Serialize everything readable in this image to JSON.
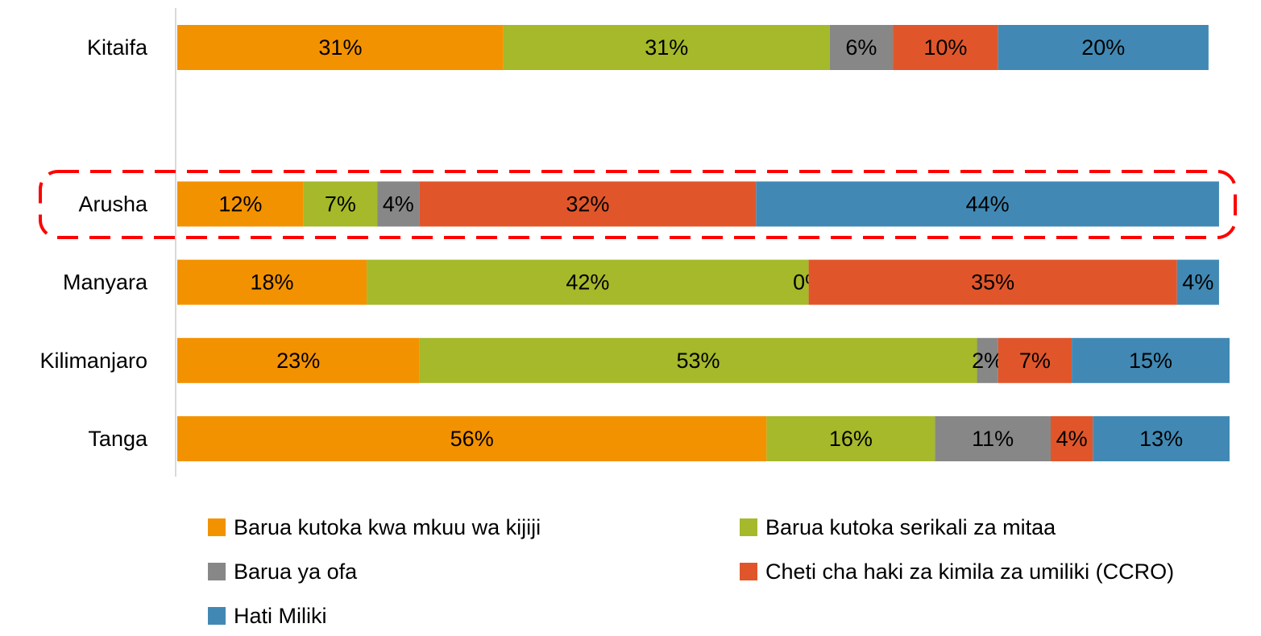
{
  "chart_data": {
    "type": "stacked-barh",
    "categories": [
      "Kitaifa",
      null,
      "Arusha",
      "Manyara",
      "Kilimanjaro",
      "Tanga"
    ],
    "xlim": [
      0,
      100
    ],
    "legend": "bottom",
    "series": [
      {
        "name": "Barua kutoka kwa mkuu wa kijiji",
        "color": "#F39200",
        "values": [
          31,
          null,
          12,
          18,
          23,
          56
        ],
        "value_labels": [
          "31%",
          null,
          "12%",
          "18%",
          "23%",
          "56%"
        ]
      },
      {
        "name": "Barua kutoka serikali za mitaa",
        "color": "#A5B92A",
        "values": [
          31,
          null,
          7,
          42,
          53,
          16
        ],
        "value_labels": [
          "31%",
          null,
          "7%",
          "42%",
          "53%",
          "16%"
        ]
      },
      {
        "name": "Barua ya ofa",
        "color": "#878787",
        "values": [
          6,
          null,
          4,
          0,
          2,
          11
        ],
        "value_labels": [
          "6%",
          null,
          "4%",
          "0%",
          "2%",
          "11%"
        ]
      },
      {
        "name": "Cheti cha haki za kimila za umiliki (CCRO)",
        "color": "#E0562A",
        "values": [
          10,
          null,
          32,
          35,
          7,
          4
        ],
        "value_labels": [
          "10%",
          null,
          "32%",
          "35%",
          "7%",
          "4%"
        ]
      },
      {
        "name": "Hati Miliki",
        "color": "#4189B4",
        "values": [
          20,
          null,
          44,
          4,
          15,
          13
        ],
        "value_labels": [
          "20%",
          null,
          "44%",
          "4%",
          "15%",
          "13%"
        ]
      }
    ]
  }
}
